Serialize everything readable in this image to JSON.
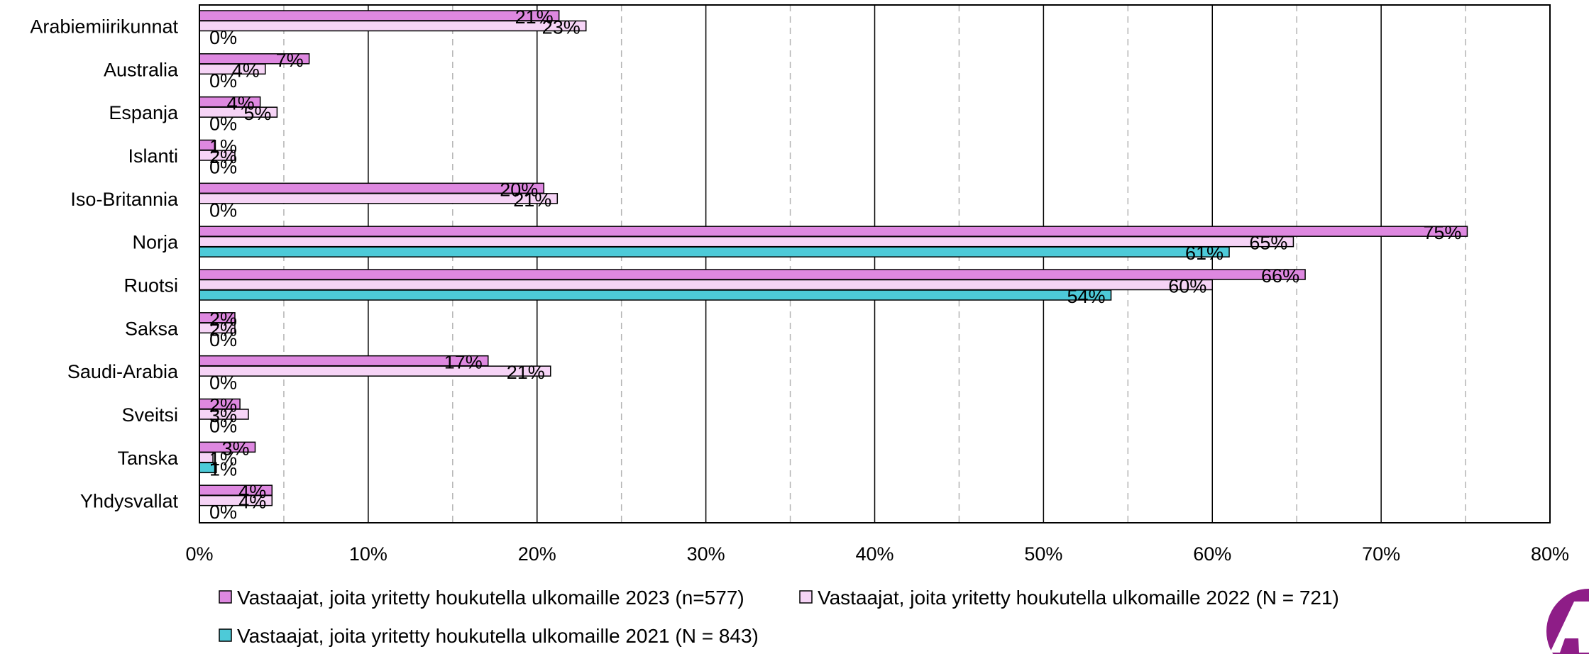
{
  "chart_data": {
    "type": "bar",
    "orientation": "horizontal",
    "categories": [
      "Arabiemiirikunnat",
      "Australia",
      "Espanja",
      "Islanti",
      "Iso-Britannia",
      "Norja",
      "Ruotsi",
      "Saksa",
      "Saudi-Arabia",
      "Sveitsi",
      "Tanska",
      "Yhdysvallat"
    ],
    "series": [
      {
        "name": "Vastaajat, joita yritetty houkutella ulkomaille 2023 (n=577)",
        "values": [
          21.3,
          6.5,
          3.6,
          0.9,
          20.4,
          75.1,
          65.5,
          2.1,
          17.1,
          2.4,
          3.3,
          4.3
        ],
        "labels": [
          "21%",
          "7%",
          "4%",
          "1%",
          "20%",
          "75%",
          "66%",
          "2%",
          "17%",
          "2%",
          "3%",
          "4%"
        ],
        "color": "#de88e0"
      },
      {
        "name": "Vastaajat, joita yritetty houkutella ulkomaille 2022 (N = 721)",
        "values": [
          22.9,
          3.9,
          4.6,
          2.1,
          21.2,
          64.8,
          60.0,
          2.1,
          20.8,
          2.9,
          0.8,
          4.3
        ],
        "labels": [
          "23%",
          "4%",
          "5%",
          "2%",
          "21%",
          "65%",
          "60%",
          "2%",
          "21%",
          "3%",
          "1%",
          "4%"
        ],
        "color": "#f6d4f6"
      },
      {
        "name": "Vastaajat, joita yritetty houkutella ulkomaille 2021 (N = 843)",
        "values": [
          0,
          0,
          0,
          0,
          0,
          61.0,
          54.0,
          0,
          0,
          0,
          1.0,
          0
        ],
        "labels": [
          "0%",
          "0%",
          "0%",
          "0%",
          "0%",
          "61%",
          "54%",
          "0%",
          "0%",
          "0%",
          "1%",
          "0%"
        ],
        "color": "#4dcad8"
      }
    ],
    "xticks": [
      "0%",
      "10%",
      "20%",
      "30%",
      "40%",
      "50%",
      "60%",
      "70%",
      "80%"
    ],
    "xlim": [
      0,
      80
    ],
    "major_grid_step": 10,
    "minor_grid_step": 5,
    "grid": true,
    "legend_placement": "bottom",
    "title": "",
    "xlabel": "",
    "ylabel": ""
  }
}
